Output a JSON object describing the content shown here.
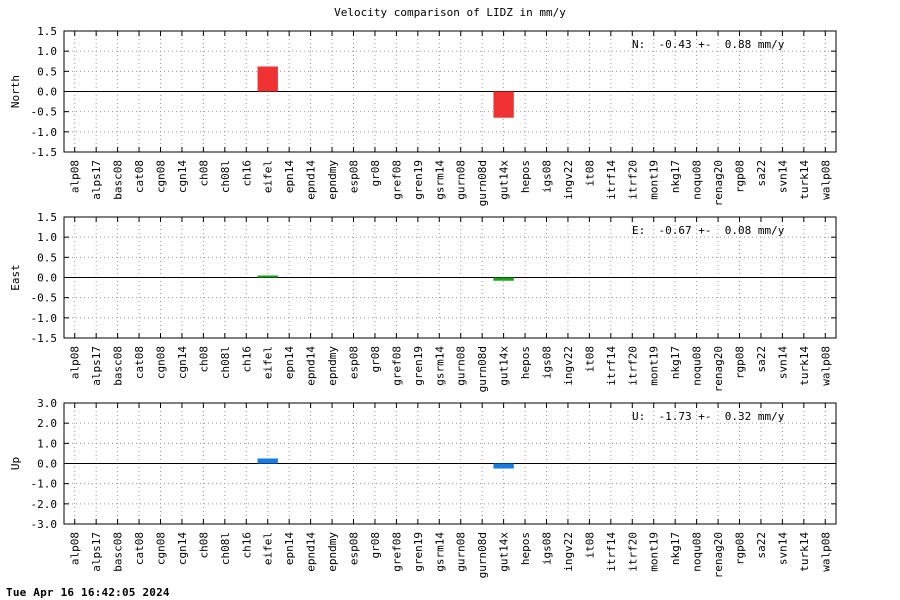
{
  "footer_timestamp": "Tue Apr 16 16:42:05 2024",
  "chart_data": [
    {
      "type": "bar",
      "title": "Velocity comparison of LIDZ in mm/y",
      "ylabel": "North",
      "ylim": [
        -1.5,
        1.5
      ],
      "yticks": [
        "1.5",
        "1.0",
        "0.5",
        "0.0",
        "-0.5",
        "-1.0",
        "-1.5"
      ],
      "ytick_values": [
        1.5,
        1.0,
        0.5,
        0.0,
        -0.5,
        -1.0,
        -1.5
      ],
      "annotation": "N:  -0.43 +-  0.88 mm/y",
      "grid": true,
      "color": "#f03232",
      "categories": [
        "alp08",
        "alps17",
        "basc08",
        "cat08",
        "cgn08",
        "cgn14",
        "ch08",
        "ch08l",
        "ch16",
        "eifel",
        "epn14",
        "epnd14",
        "epndmy",
        "esp08",
        "gr08",
        "gref08",
        "gren19",
        "gsrm14",
        "gurn08",
        "gurn08d",
        "gut14x",
        "hepos",
        "igs08",
        "ingv22",
        "it08",
        "itrf14",
        "itrf20",
        "mont19",
        "nkg17",
        "noqu08",
        "renag20",
        "rgp08",
        "sa22",
        "svn14",
        "turk14",
        "walp08"
      ],
      "values": [
        0,
        0,
        0,
        0,
        0,
        0,
        0,
        0,
        0,
        0.62,
        0,
        0,
        0,
        0,
        0,
        0,
        0,
        0,
        0,
        0,
        -0.65,
        0,
        0,
        0,
        0,
        0,
        0,
        0,
        0,
        0,
        0,
        0,
        0,
        0,
        0,
        0
      ]
    },
    {
      "type": "bar",
      "title": "",
      "ylabel": "East",
      "ylim": [
        -1.5,
        1.5
      ],
      "yticks": [
        "1.5",
        "1.0",
        "0.5",
        "0.0",
        "-0.5",
        "-1.0",
        "-1.5"
      ],
      "ytick_values": [
        1.5,
        1.0,
        0.5,
        0.0,
        -0.5,
        -1.0,
        -1.5
      ],
      "annotation": "E:  -0.67 +-  0.08 mm/y",
      "grid": true,
      "color": "#1aa31a",
      "categories": [
        "alp08",
        "alps17",
        "basc08",
        "cat08",
        "cgn08",
        "cgn14",
        "ch08",
        "ch08l",
        "ch16",
        "eifel",
        "epn14",
        "epnd14",
        "epndmy",
        "esp08",
        "gr08",
        "gref08",
        "gren19",
        "gsrm14",
        "gurn08",
        "gurn08d",
        "gut14x",
        "hepos",
        "igs08",
        "ingv22",
        "it08",
        "itrf14",
        "itrf20",
        "mont19",
        "nkg17",
        "noqu08",
        "renag20",
        "rgp08",
        "sa22",
        "svn14",
        "turk14",
        "walp08"
      ],
      "values": [
        0,
        0,
        0,
        0,
        0,
        0,
        0,
        0,
        0,
        0.05,
        0,
        0,
        0,
        0,
        0,
        0,
        0,
        0,
        0,
        0,
        -0.08,
        0,
        0,
        0,
        0,
        0,
        0,
        0,
        0,
        0,
        0,
        0,
        0,
        0,
        0,
        0
      ]
    },
    {
      "type": "bar",
      "title": "",
      "ylabel": "Up",
      "ylim": [
        -3.0,
        3.0
      ],
      "yticks": [
        "3.0",
        "2.0",
        "1.0",
        "0.0",
        "-1.0",
        "-2.0",
        "-3.0"
      ],
      "ytick_values": [
        3.0,
        2.0,
        1.0,
        0.0,
        -1.0,
        -2.0,
        -3.0
      ],
      "annotation": "U:  -1.73 +-  0.32 mm/y",
      "grid": true,
      "color": "#1a7ae0",
      "categories": [
        "alp08",
        "alps17",
        "basc08",
        "cat08",
        "cgn08",
        "cgn14",
        "ch08",
        "ch08l",
        "ch16",
        "eifel",
        "epn14",
        "epnd14",
        "epndmy",
        "esp08",
        "gr08",
        "gref08",
        "gren19",
        "gsrm14",
        "gurn08",
        "gurn08d",
        "gut14x",
        "hepos",
        "igs08",
        "ingv22",
        "it08",
        "itrf14",
        "itrf20",
        "mont19",
        "nkg17",
        "noqu08",
        "renag20",
        "rgp08",
        "sa22",
        "svn14",
        "turk14",
        "walp08"
      ],
      "values": [
        0,
        0,
        0,
        0,
        0,
        0,
        0,
        0,
        0,
        0.25,
        0,
        0,
        0,
        0,
        0,
        0,
        0,
        0,
        0,
        0,
        -0.25,
        0,
        0,
        0,
        0,
        0,
        0,
        0,
        0,
        0,
        0,
        0,
        0,
        0,
        0,
        0
      ]
    }
  ]
}
